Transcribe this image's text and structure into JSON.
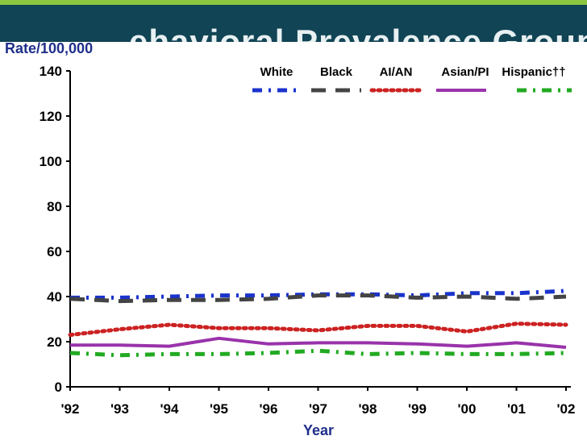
{
  "header": {
    "title": "ehavioral Prevalence Group of",
    "bar_color": "#114455",
    "accent_color": "#8cc63f"
  },
  "chart_data": {
    "type": "line",
    "title": "",
    "ylabel": "Rate/100,000",
    "xlabel": "Year",
    "ylim": [
      0,
      140
    ],
    "yticks": [
      0,
      20,
      40,
      60,
      80,
      100,
      120,
      140
    ],
    "categories": [
      "'92",
      "'93",
      "'94",
      "'95",
      "'96",
      "'97",
      "'98",
      "'99",
      "'00",
      "'01",
      "'02"
    ],
    "grid": false,
    "legend_position": "top-right",
    "series": [
      {
        "name": "White",
        "color": "#1a33cc",
        "style": "dash-dot",
        "values": [
          39.5,
          39.5,
          40,
          40.5,
          40.5,
          41,
          41,
          40.5,
          41.5,
          41.5,
          42.5
        ]
      },
      {
        "name": "Black",
        "color": "#444444",
        "style": "long-dash",
        "values": [
          39,
          38,
          38.5,
          38.5,
          39,
          40.5,
          40.5,
          39.5,
          40,
          39,
          40
        ]
      },
      {
        "name": "AI/AN",
        "color": "#cc2222",
        "style": "dotted",
        "values": [
          23,
          25.5,
          27.5,
          26,
          26,
          25,
          27,
          27,
          24.5,
          28,
          27.5
        ]
      },
      {
        "name": "Asian/PI",
        "color": "#9933aa",
        "style": "solid",
        "values": [
          18.5,
          18.5,
          18,
          21.5,
          19,
          19.5,
          19.5,
          19,
          18,
          19.5,
          17.5
        ]
      },
      {
        "name": "Hispanic††",
        "color": "#22aa22",
        "style": "dash-dot",
        "values": [
          15,
          14,
          14.5,
          14.5,
          15,
          16,
          14.5,
          15,
          14.5,
          14.5,
          15
        ]
      }
    ]
  }
}
